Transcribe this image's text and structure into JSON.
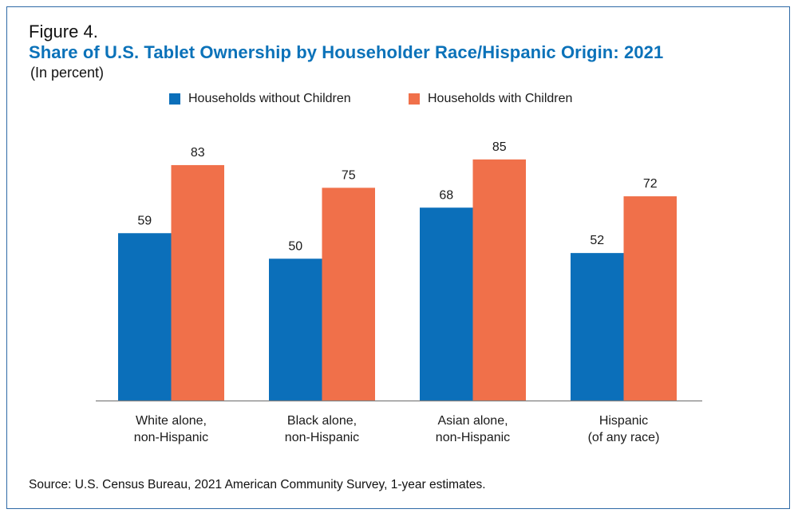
{
  "figure_label": "Figure 4.",
  "colors": {
    "frame": "#2e6aa6",
    "title": "#0b72b9",
    "series_a": "#0b6fba",
    "series_b": "#f0704a",
    "axis": "#7f7f7f"
  },
  "chart_data": {
    "type": "bar",
    "title": "Share of U.S. Tablet Ownership by Householder Race/Hispanic Origin: 2021",
    "subtitle": "(In percent)",
    "categories": [
      [
        "White alone,",
        "non-Hispanic"
      ],
      [
        "Black alone,",
        "non-Hispanic"
      ],
      [
        "Asian alone,",
        "non-Hispanic"
      ],
      [
        "Hispanic",
        "(of any race)"
      ]
    ],
    "series": [
      {
        "name": "Households without Children",
        "color": "#0b6fba",
        "values": [
          59,
          50,
          68,
          52
        ]
      },
      {
        "name": "Households with Children",
        "color": "#f0704a",
        "values": [
          83,
          75,
          85,
          72
        ]
      }
    ],
    "ylim": [
      0,
      100
    ],
    "xlabel": "",
    "ylabel": "",
    "grid": false,
    "legend_position": "top"
  },
  "source": "Source: U.S. Census Bureau, 2021 American Community Survey, 1-year estimates."
}
